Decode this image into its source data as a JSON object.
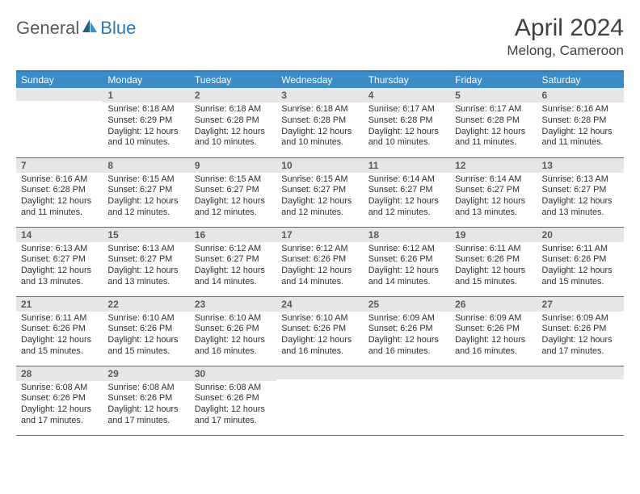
{
  "header": {
    "logo_general": "General",
    "logo_blue": "Blue",
    "month_title": "April 2024",
    "location": "Melong, Cameroon"
  },
  "colors": {
    "header_bg": "#3a8cc9",
    "header_border": "#2a7ab8",
    "daynum_bg": "#e6e6e6",
    "text": "#303030",
    "title_text": "#404040"
  },
  "days_of_week": [
    "Sunday",
    "Monday",
    "Tuesday",
    "Wednesday",
    "Thursday",
    "Friday",
    "Saturday"
  ],
  "weeks": [
    [
      {
        "n": "",
        "sunrise": "",
        "sunset": "",
        "daylight": ""
      },
      {
        "n": "1",
        "sunrise": "Sunrise: 6:18 AM",
        "sunset": "Sunset: 6:29 PM",
        "daylight": "Daylight: 12 hours and 10 minutes."
      },
      {
        "n": "2",
        "sunrise": "Sunrise: 6:18 AM",
        "sunset": "Sunset: 6:28 PM",
        "daylight": "Daylight: 12 hours and 10 minutes."
      },
      {
        "n": "3",
        "sunrise": "Sunrise: 6:18 AM",
        "sunset": "Sunset: 6:28 PM",
        "daylight": "Daylight: 12 hours and 10 minutes."
      },
      {
        "n": "4",
        "sunrise": "Sunrise: 6:17 AM",
        "sunset": "Sunset: 6:28 PM",
        "daylight": "Daylight: 12 hours and 10 minutes."
      },
      {
        "n": "5",
        "sunrise": "Sunrise: 6:17 AM",
        "sunset": "Sunset: 6:28 PM",
        "daylight": "Daylight: 12 hours and 11 minutes."
      },
      {
        "n": "6",
        "sunrise": "Sunrise: 6:16 AM",
        "sunset": "Sunset: 6:28 PM",
        "daylight": "Daylight: 12 hours and 11 minutes."
      }
    ],
    [
      {
        "n": "7",
        "sunrise": "Sunrise: 6:16 AM",
        "sunset": "Sunset: 6:28 PM",
        "daylight": "Daylight: 12 hours and 11 minutes."
      },
      {
        "n": "8",
        "sunrise": "Sunrise: 6:15 AM",
        "sunset": "Sunset: 6:27 PM",
        "daylight": "Daylight: 12 hours and 12 minutes."
      },
      {
        "n": "9",
        "sunrise": "Sunrise: 6:15 AM",
        "sunset": "Sunset: 6:27 PM",
        "daylight": "Daylight: 12 hours and 12 minutes."
      },
      {
        "n": "10",
        "sunrise": "Sunrise: 6:15 AM",
        "sunset": "Sunset: 6:27 PM",
        "daylight": "Daylight: 12 hours and 12 minutes."
      },
      {
        "n": "11",
        "sunrise": "Sunrise: 6:14 AM",
        "sunset": "Sunset: 6:27 PM",
        "daylight": "Daylight: 12 hours and 12 minutes."
      },
      {
        "n": "12",
        "sunrise": "Sunrise: 6:14 AM",
        "sunset": "Sunset: 6:27 PM",
        "daylight": "Daylight: 12 hours and 13 minutes."
      },
      {
        "n": "13",
        "sunrise": "Sunrise: 6:13 AM",
        "sunset": "Sunset: 6:27 PM",
        "daylight": "Daylight: 12 hours and 13 minutes."
      }
    ],
    [
      {
        "n": "14",
        "sunrise": "Sunrise: 6:13 AM",
        "sunset": "Sunset: 6:27 PM",
        "daylight": "Daylight: 12 hours and 13 minutes."
      },
      {
        "n": "15",
        "sunrise": "Sunrise: 6:13 AM",
        "sunset": "Sunset: 6:27 PM",
        "daylight": "Daylight: 12 hours and 13 minutes."
      },
      {
        "n": "16",
        "sunrise": "Sunrise: 6:12 AM",
        "sunset": "Sunset: 6:27 PM",
        "daylight": "Daylight: 12 hours and 14 minutes."
      },
      {
        "n": "17",
        "sunrise": "Sunrise: 6:12 AM",
        "sunset": "Sunset: 6:26 PM",
        "daylight": "Daylight: 12 hours and 14 minutes."
      },
      {
        "n": "18",
        "sunrise": "Sunrise: 6:12 AM",
        "sunset": "Sunset: 6:26 PM",
        "daylight": "Daylight: 12 hours and 14 minutes."
      },
      {
        "n": "19",
        "sunrise": "Sunrise: 6:11 AM",
        "sunset": "Sunset: 6:26 PM",
        "daylight": "Daylight: 12 hours and 15 minutes."
      },
      {
        "n": "20",
        "sunrise": "Sunrise: 6:11 AM",
        "sunset": "Sunset: 6:26 PM",
        "daylight": "Daylight: 12 hours and 15 minutes."
      }
    ],
    [
      {
        "n": "21",
        "sunrise": "Sunrise: 6:11 AM",
        "sunset": "Sunset: 6:26 PM",
        "daylight": "Daylight: 12 hours and 15 minutes."
      },
      {
        "n": "22",
        "sunrise": "Sunrise: 6:10 AM",
        "sunset": "Sunset: 6:26 PM",
        "daylight": "Daylight: 12 hours and 15 minutes."
      },
      {
        "n": "23",
        "sunrise": "Sunrise: 6:10 AM",
        "sunset": "Sunset: 6:26 PM",
        "daylight": "Daylight: 12 hours and 16 minutes."
      },
      {
        "n": "24",
        "sunrise": "Sunrise: 6:10 AM",
        "sunset": "Sunset: 6:26 PM",
        "daylight": "Daylight: 12 hours and 16 minutes."
      },
      {
        "n": "25",
        "sunrise": "Sunrise: 6:09 AM",
        "sunset": "Sunset: 6:26 PM",
        "daylight": "Daylight: 12 hours and 16 minutes."
      },
      {
        "n": "26",
        "sunrise": "Sunrise: 6:09 AM",
        "sunset": "Sunset: 6:26 PM",
        "daylight": "Daylight: 12 hours and 16 minutes."
      },
      {
        "n": "27",
        "sunrise": "Sunrise: 6:09 AM",
        "sunset": "Sunset: 6:26 PM",
        "daylight": "Daylight: 12 hours and 17 minutes."
      }
    ],
    [
      {
        "n": "28",
        "sunrise": "Sunrise: 6:08 AM",
        "sunset": "Sunset: 6:26 PM",
        "daylight": "Daylight: 12 hours and 17 minutes."
      },
      {
        "n": "29",
        "sunrise": "Sunrise: 6:08 AM",
        "sunset": "Sunset: 6:26 PM",
        "daylight": "Daylight: 12 hours and 17 minutes."
      },
      {
        "n": "30",
        "sunrise": "Sunrise: 6:08 AM",
        "sunset": "Sunset: 6:26 PM",
        "daylight": "Daylight: 12 hours and 17 minutes."
      },
      {
        "n": "",
        "sunrise": "",
        "sunset": "",
        "daylight": ""
      },
      {
        "n": "",
        "sunrise": "",
        "sunset": "",
        "daylight": ""
      },
      {
        "n": "",
        "sunrise": "",
        "sunset": "",
        "daylight": ""
      },
      {
        "n": "",
        "sunrise": "",
        "sunset": "",
        "daylight": ""
      }
    ]
  ]
}
